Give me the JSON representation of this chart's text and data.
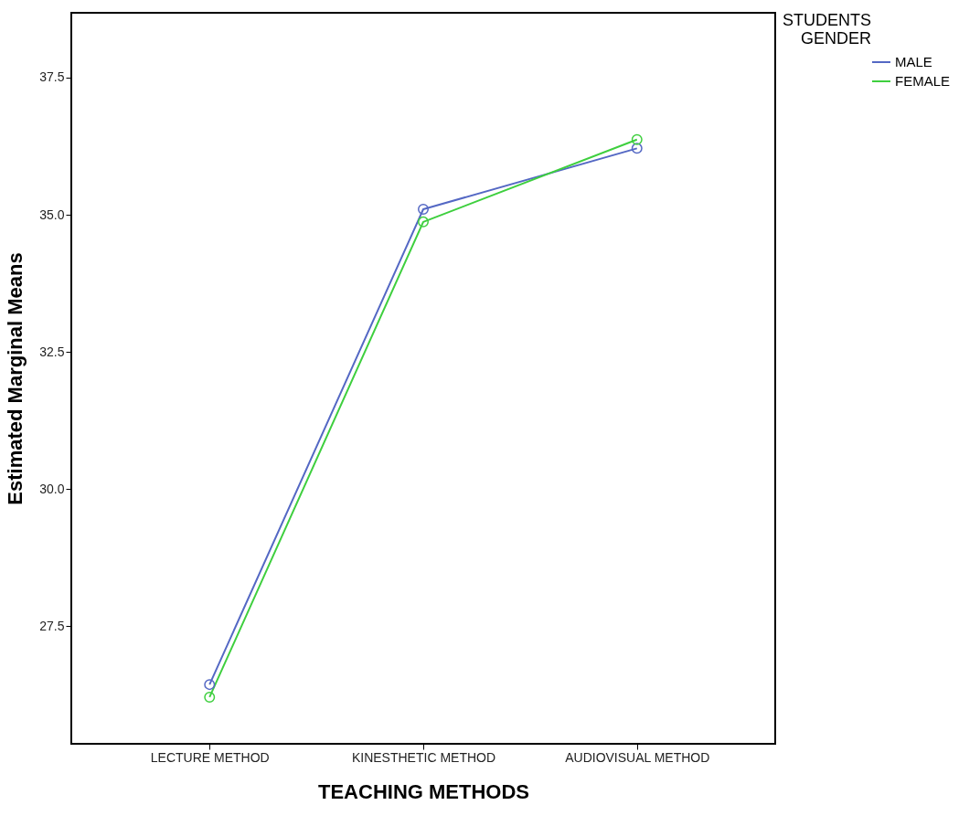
{
  "chart_data": {
    "type": "line",
    "xlabel": "TEACHING METHODS",
    "ylabel": "Estimated Marginal Means",
    "legend_title": "STUDENTS GENDER",
    "categories": [
      "LECTURE METHOD",
      "KINESTHETIC METHOD",
      "AUDIOVISUAL METHOD"
    ],
    "series": [
      {
        "name": "MALE",
        "color": "#5468c4",
        "values": [
          26.44,
          35.1,
          36.21
        ]
      },
      {
        "name": "FEMALE",
        "color": "#3ecf3e",
        "values": [
          26.21,
          34.87,
          36.37
        ]
      }
    ],
    "ylim": [
      25.36,
      38.68
    ],
    "yticks": [
      27.5,
      {
        "value": 30,
        "label": "30.0"
      },
      32.5,
      {
        "value": 35,
        "label": "35.0"
      },
      37.5
    ],
    "grid": false,
    "legend": "top right",
    "marker": "circle",
    "line_style": "solid"
  }
}
